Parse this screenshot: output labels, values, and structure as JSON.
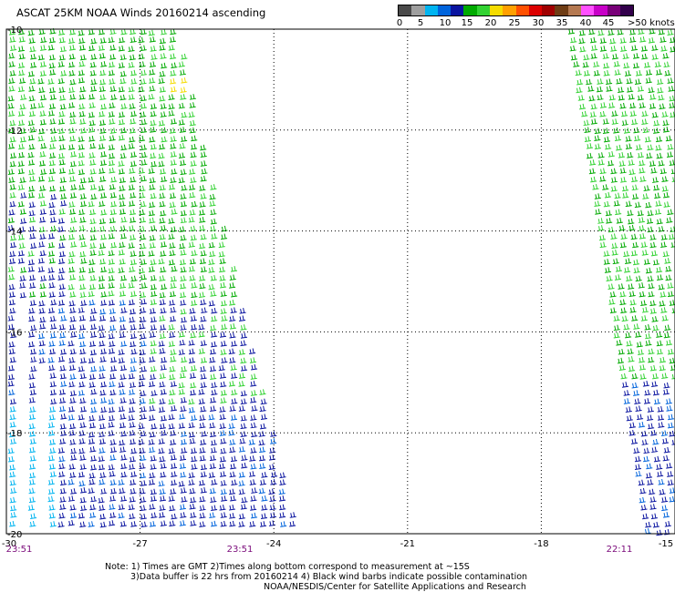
{
  "title": "ASCAT 25KM NOAA Winds 20160214 ascending",
  "colorbar": {
    "labels": [
      "0",
      "5",
      "10",
      "15",
      "20",
      "25",
      "30",
      "35",
      "40",
      "45",
      ">50 knots"
    ],
    "colors": [
      "#4a4a4a",
      "#9e9e9e",
      "#00b4f0",
      "#0064dc",
      "#0a14a0",
      "#00aa00",
      "#32d232",
      "#f5dc00",
      "#ffa000",
      "#ff5000",
      "#dc0000",
      "#a00000",
      "#6e3c14",
      "#b47850",
      "#ff50ff",
      "#c800c8",
      "#780078",
      "#32004b"
    ]
  },
  "axes": {
    "x_ticks": [
      "-30",
      "-27",
      "-24",
      "-21",
      "-18",
      "-15"
    ],
    "y_ticks": [
      "-10",
      "-12",
      "-14",
      "-16",
      "-18",
      "-20"
    ]
  },
  "swath_times": {
    "left_start": "23:51",
    "left_end": "23:51",
    "right": "22:11"
  },
  "notes": {
    "line1": "Note: 1) Times are GMT 2)Times along bottom correspond to measurement at ~15S",
    "line2": "3)Data buffer is 22 hrs from 20160214 4) Black wind barbs indicate possible contamination",
    "line3": "NOAA/NESDIS/Center for Satellite Applications and Research"
  }
}
